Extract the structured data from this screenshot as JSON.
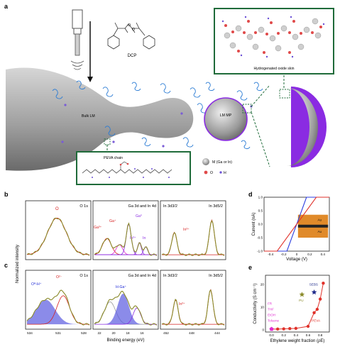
{
  "panel_a": {
    "label": "a",
    "reagent": "DCP",
    "bulk_label": "Bulk LM",
    "particle_label": "LM MP",
    "skin_label": "Hydrogenated oxide skin",
    "chain_label": "PEVA chain",
    "legend_metal": "M (Ga or In)",
    "legend_o": "O",
    "legend_h": "H"
  },
  "panel_b": {
    "label": "b",
    "o1s_title": "O 1s",
    "o1s_peak": "O",
    "ga_title": "Ga 3d and In 4d",
    "ga_peaks": [
      "Ga³⁺",
      "Ga⁺",
      "Ga⁰",
      "In³⁺",
      "In"
    ],
    "in_title_left": "In 3d3/2",
    "in_title_right": "In 3d5/2",
    "in_peak": "In³⁺"
  },
  "panel_c": {
    "label": "c",
    "o1s_title": "O 1s",
    "o1s_peaks": [
      "Oᴴ-H⁺",
      "O²⁻"
    ],
    "ga_title": "Ga 3d and In 4d",
    "ga_peak": "H-Ga⁺",
    "in_title_left": "In 3d3/2",
    "in_title_right": "In 3d5/2",
    "in_peak": "In³⁺",
    "xaxis_title": "Binding energy (eV)",
    "yaxis_title": "Normalized intensity",
    "ticks_o1s": [
      "534",
      "531",
      "528"
    ],
    "ticks_ga": [
      "22",
      "20",
      "18",
      "16"
    ],
    "ticks_in": [
      "452",
      "448",
      "444"
    ]
  },
  "chart_data": [
    {
      "type": "line",
      "panel": "d",
      "xlabel": "Voltage (V)",
      "ylabel": "Current (nA)",
      "xlim": [
        -0.5,
        0.5
      ],
      "ylim": [
        -1.0,
        1.0
      ],
      "x_ticks": [
        "-0.4",
        "-0.2",
        "0",
        "0.2",
        "0.4"
      ],
      "y_ticks": [
        "1.0",
        "0.5",
        "0.0",
        "-0.5",
        "-1.0"
      ],
      "inset_labels": [
        "Au",
        "Au"
      ],
      "series": [
        {
          "color": "#2b3de0",
          "x": [
            -0.5,
            -0.15,
            0.15,
            0.5
          ],
          "y": [
            -1.0,
            -1.0,
            1.0,
            1.0
          ]
        },
        {
          "color": "#e0322b",
          "x": [
            -0.5,
            -0.3,
            0.3,
            0.5
          ],
          "y": [
            -1.0,
            -1.0,
            1.0,
            1.0
          ]
        }
      ]
    },
    {
      "type": "scatter",
      "panel": "e",
      "xlabel": "Ethylene weight fraction (ρE)",
      "ylabel": "Conductivity (S cm⁻¹)",
      "xlim": [
        -0.1,
        0.95
      ],
      "ylim": [
        -1,
        24
      ],
      "x_ticks": [
        "0.0",
        "0.2",
        "0.4",
        "0.6",
        "0.8"
      ],
      "y_ticks": [
        "0",
        "10",
        "20"
      ],
      "series": [
        {
          "name": "PEVA",
          "color": "#e0322b",
          "x": [
            0.0,
            0.1,
            0.2,
            0.3,
            0.4,
            0.6,
            0.7,
            0.75,
            0.8,
            0.85
          ],
          "y": [
            0.3,
            0.3,
            0.4,
            0.5,
            0.6,
            1.5,
            7.5,
            9.0,
            13.5,
            20.5
          ]
        },
        {
          "name": "PU",
          "color": "#8a8a2a",
          "x": [
            0.5
          ],
          "y": [
            15.5
          ]
        },
        {
          "name": "SEBS",
          "color": "#1f2a8a",
          "x": [
            0.7
          ],
          "y": [
            16.5
          ]
        },
        {
          "name": "FR\nTHF\nEtOH\nToluene",
          "color": "#e02bd0",
          "x": [
            0.0
          ],
          "y": [
            0.3
          ]
        }
      ],
      "labels": [
        "FR",
        "THF",
        "EtOH",
        "Toluene",
        "PU",
        "SEBS",
        "PEVA"
      ]
    }
  ],
  "colors": {
    "frame_green": "#1f6b3a",
    "purple": "#8a2be2",
    "fit_olive": "#8a8a2a"
  }
}
